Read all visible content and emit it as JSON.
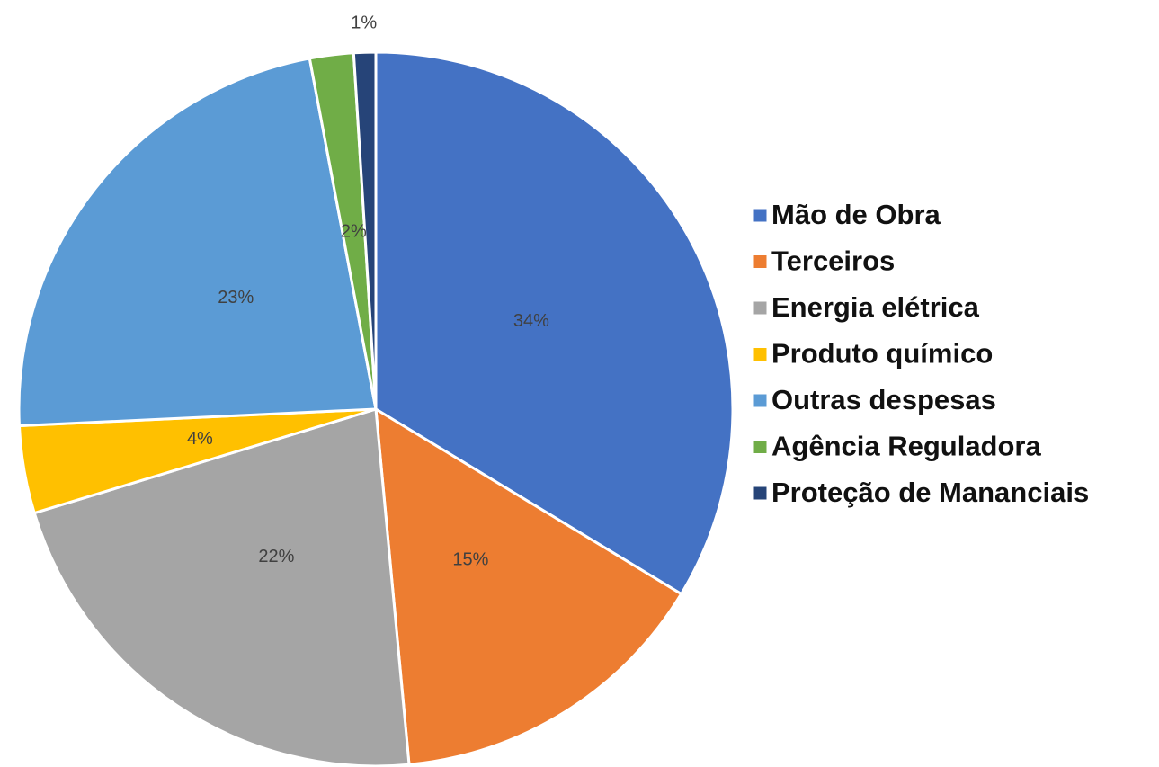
{
  "chart_data": {
    "type": "pie",
    "categories": [
      "Mão de Obra",
      "Terceiros",
      "Energia elétrica",
      "Produto químico",
      "Outras despesas",
      "Agência Reguladora",
      "Proteção de Mananciais"
    ],
    "values": [
      34,
      15,
      22,
      4,
      23,
      2,
      1
    ],
    "value_labels": [
      "34%",
      "15%",
      "22%",
      "4%",
      "23%",
      "2%",
      "1%"
    ],
    "colors": [
      "#4472c4",
      "#ed7d31",
      "#a5a5a5",
      "#ffc000",
      "#5b9bd5",
      "#70ad47",
      "#264478"
    ],
    "legend": "right"
  }
}
